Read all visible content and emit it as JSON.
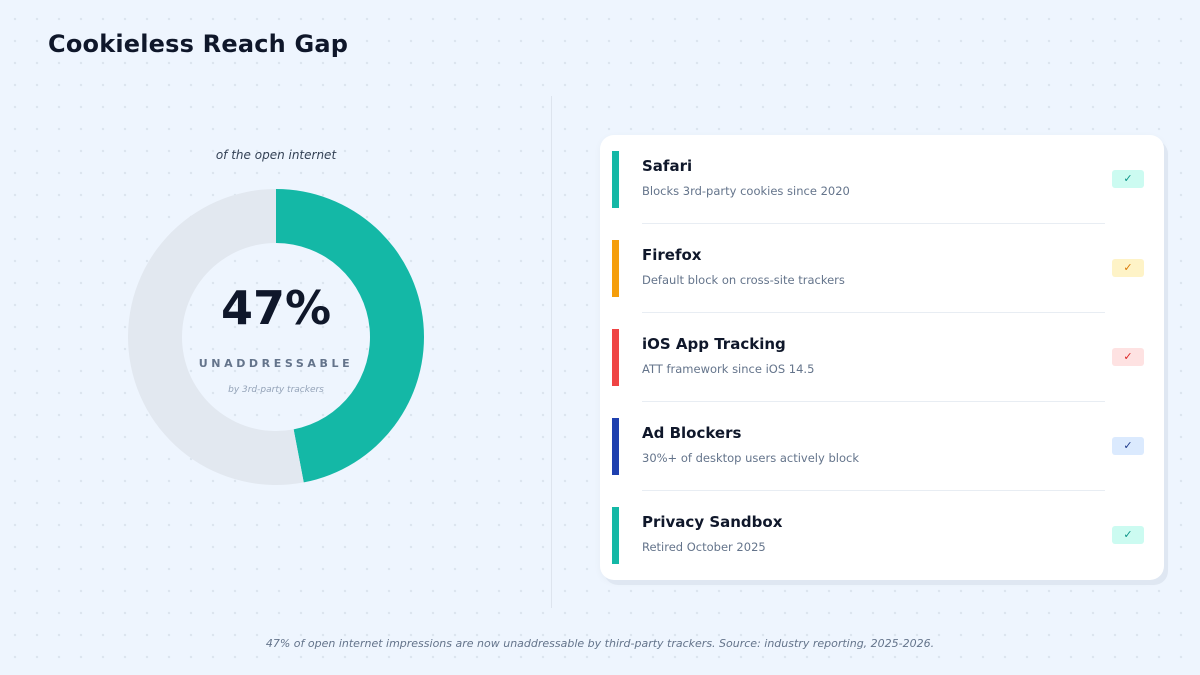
{
  "title": "Cookieless Reach Gap",
  "chart_data": {
    "type": "pie",
    "subtitle": "of the open internet",
    "value_label": "47%",
    "center_label": "UNADDRESSABLE",
    "center_sublabel": "by 3rd-party trackers",
    "slices": [
      {
        "label": "UNADDRESSABLE",
        "value": 47,
        "color": "#14b8a6"
      },
      {
        "label": "",
        "value": 53,
        "color": "#e2e8f0"
      }
    ]
  },
  "factors": [
    {
      "title": "Safari",
      "desc": "Blocks 3rd-party cookies since 2020",
      "accent": "#14b8a6",
      "badge_icon": "check-icon",
      "badge_text": "✓",
      "badge_bg": "#ccfbf1",
      "badge_fg": "#0d9488"
    },
    {
      "title": "Firefox",
      "desc": "Default block on cross-site trackers",
      "accent": "#f59e0b",
      "badge_icon": "check-icon",
      "badge_text": "✓",
      "badge_bg": "#fef3c7",
      "badge_fg": "#d97706"
    },
    {
      "title": "iOS App Tracking",
      "desc": "ATT framework since iOS 14.5",
      "accent": "#ef4444",
      "badge_icon": "check-icon",
      "badge_text": "✓",
      "badge_bg": "#fee2e2",
      "badge_fg": "#dc2626"
    },
    {
      "title": "Ad Blockers",
      "desc": "30%+ of desktop users actively block",
      "accent": "#1e40af",
      "badge_icon": "check-icon",
      "badge_text": "✓",
      "badge_bg": "#dbeafe",
      "badge_fg": "#1e3a8a"
    },
    {
      "title": "Privacy Sandbox",
      "desc": "Retired October 2025",
      "accent": "#14b8a6",
      "badge_icon": "check-icon",
      "badge_text": "✓",
      "badge_bg": "#ccfbf1",
      "badge_fg": "#0d9488"
    }
  ],
  "footnote": "47% of open internet impressions are now unaddressable by third-party trackers. Source: industry reporting, 2025-2026."
}
